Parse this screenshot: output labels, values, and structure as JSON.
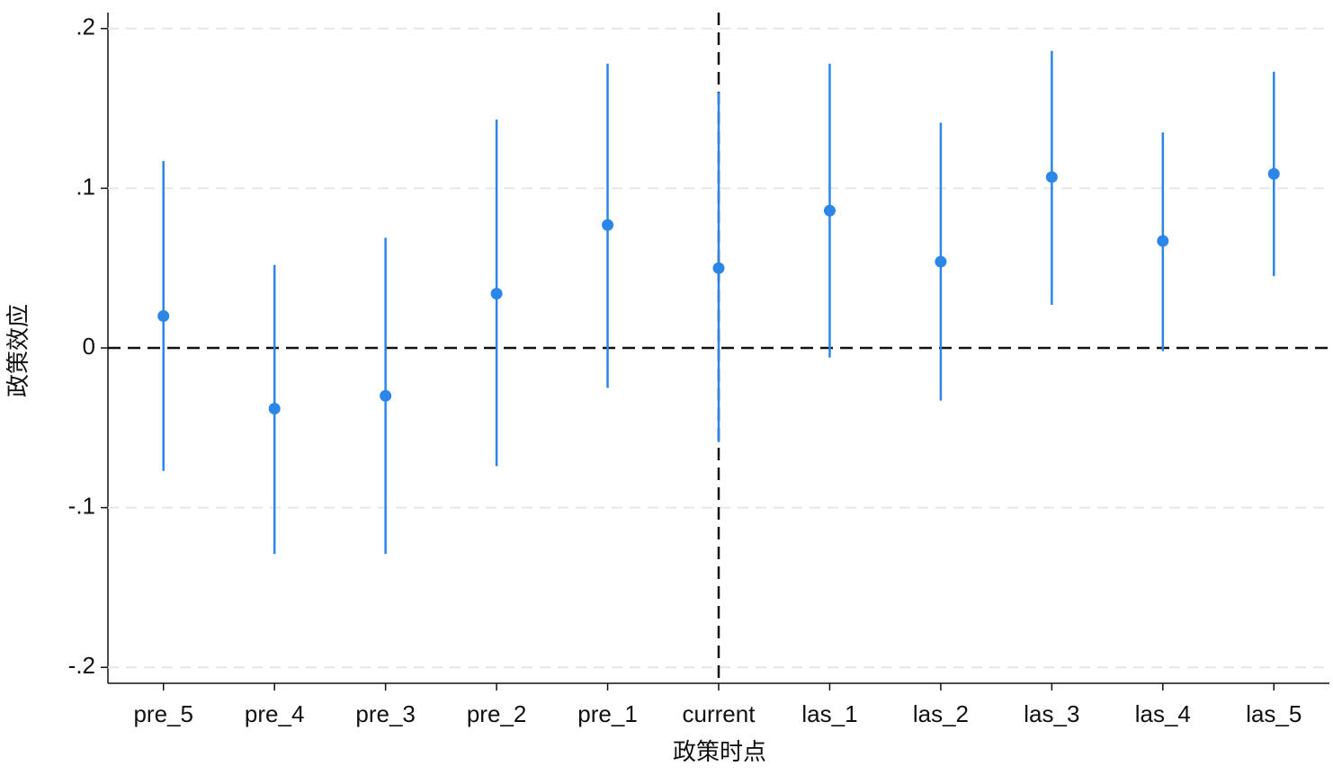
{
  "chart_data": {
    "type": "coefplot",
    "x_label": "政策时点",
    "y_label": "政策效应",
    "categories": [
      "pre_5",
      "pre_4",
      "pre_3",
      "pre_2",
      "pre_1",
      "current",
      "las_1",
      "las_2",
      "las_3",
      "las_4",
      "las_5"
    ],
    "series": [
      {
        "color": "#2b86e8",
        "values": [
          0.02,
          -0.038,
          -0.03,
          0.034,
          0.077,
          0.05,
          0.086,
          0.054,
          0.107,
          0.067,
          0.109
        ],
        "lower": [
          -0.077,
          -0.129,
          -0.129,
          -0.074,
          -0.025,
          -0.059,
          -0.006,
          -0.033,
          0.027,
          -0.002,
          0.045
        ],
        "upper": [
          0.117,
          0.052,
          0.069,
          0.143,
          0.178,
          0.16,
          0.178,
          0.141,
          0.186,
          0.135,
          0.173
        ]
      }
    ],
    "ylim": [
      -0.21,
      0.21
    ],
    "yticks": [
      {
        "value": -0.2,
        "label": "-.2"
      },
      {
        "value": -0.1,
        "label": "-.1"
      },
      0,
      {
        "value": 0.1,
        "label": ".1"
      },
      {
        "value": 0.2,
        "label": ".2"
      }
    ],
    "grid": true,
    "hline": 0,
    "vline": "current"
  }
}
